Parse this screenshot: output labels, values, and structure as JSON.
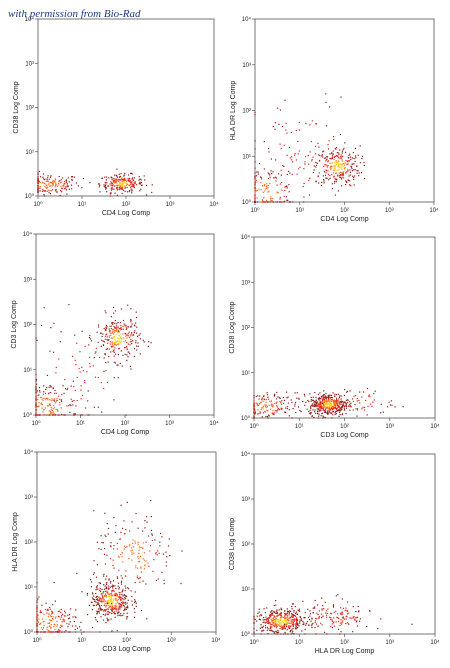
{
  "credit_text": "with permission from Bio-Rad",
  "chart_data": [
    {
      "type": "scatter",
      "xlabel": "CD4 Log Comp",
      "ylabel": "CD38 Log Comp",
      "scale": "log",
      "xlim": [
        1,
        10000
      ],
      "ylim": [
        1,
        10000
      ],
      "x_tick_labels": [
        "10⁰",
        "10¹",
        "10²",
        "10³",
        "10⁴"
      ],
      "y_tick_labels": [
        "10⁰",
        "10¹",
        "10²",
        "10³",
        "10⁴"
      ],
      "clusters": [
        {
          "center": [
            1.8,
            1.8
          ],
          "spread": [
            0.35,
            0.12
          ],
          "count": 170
        },
        {
          "center": [
            80,
            1.9
          ],
          "spread": [
            0.25,
            0.1
          ],
          "count": 240
        }
      ]
    },
    {
      "type": "scatter",
      "xlabel": "CD4 Log Comp",
      "ylabel": "HLA DR Log Comp",
      "scale": "log",
      "xlim": [
        1,
        10000
      ],
      "ylim": [
        1,
        10000
      ],
      "x_tick_labels": [
        "10⁰",
        "10¹",
        "10²",
        "10³",
        "10⁴"
      ],
      "y_tick_labels": [
        "10⁰",
        "10¹",
        "10²",
        "10³",
        "10⁴"
      ],
      "clusters": [
        {
          "center": [
            1.8,
            1.6
          ],
          "spread": [
            0.35,
            0.3
          ],
          "count": 160
        },
        {
          "center": [
            70,
            6
          ],
          "spread": [
            0.25,
            0.22
          ],
          "count": 260
        },
        {
          "center": [
            12,
            12
          ],
          "spread": [
            0.6,
            0.6
          ],
          "count": 90
        }
      ]
    },
    {
      "type": "scatter",
      "xlabel": "CD4 Log Comp",
      "ylabel": "CD3 Log Comp",
      "scale": "log",
      "xlim": [
        1,
        10000
      ],
      "ylim": [
        1,
        10000
      ],
      "x_tick_labels": [
        "10⁰",
        "10¹",
        "10²",
        "10³",
        "10⁴"
      ],
      "y_tick_labels": [
        "10⁰",
        "10¹",
        "10²",
        "10³",
        "10⁴"
      ],
      "clusters": [
        {
          "center": [
            1.8,
            1.7
          ],
          "spread": [
            0.35,
            0.25
          ],
          "count": 170
        },
        {
          "center": [
            70,
            50
          ],
          "spread": [
            0.25,
            0.25
          ],
          "count": 260
        },
        {
          "center": [
            10,
            10
          ],
          "spread": [
            0.55,
            0.55
          ],
          "count": 90
        }
      ]
    },
    {
      "type": "scatter",
      "xlabel": "CD3 Log Comp",
      "ylabel": "CD38 Log Comp",
      "scale": "log",
      "xlim": [
        1,
        10000
      ],
      "ylim": [
        1,
        10000
      ],
      "x_tick_labels": [
        "10⁰",
        "10¹",
        "10²",
        "10³",
        "10⁴"
      ],
      "y_tick_labels": [
        "10⁰",
        "10¹",
        "10²",
        "10³",
        "10⁴"
      ],
      "clusters": [
        {
          "center": [
            1.8,
            1.8
          ],
          "spread": [
            0.35,
            0.15
          ],
          "count": 170
        },
        {
          "center": [
            45,
            2.0
          ],
          "spread": [
            0.22,
            0.12
          ],
          "count": 420
        },
        {
          "center": [
            200,
            2.2
          ],
          "spread": [
            0.4,
            0.15
          ],
          "count": 60
        }
      ]
    },
    {
      "type": "scatter",
      "xlabel": "CD3 Log Comp",
      "ylabel": "HLA DR Log Comp",
      "scale": "log",
      "xlim": [
        1,
        10000
      ],
      "ylim": [
        1,
        10000
      ],
      "x_tick_labels": [
        "10⁰",
        "10¹",
        "10²",
        "10³",
        "10⁴"
      ],
      "y_tick_labels": [
        "10⁰",
        "10¹",
        "10²",
        "10³",
        "10⁴"
      ],
      "clusters": [
        {
          "center": [
            1.8,
            1.6
          ],
          "spread": [
            0.35,
            0.25
          ],
          "count": 200
        },
        {
          "center": [
            45,
            5
          ],
          "spread": [
            0.22,
            0.22
          ],
          "count": 380
        },
        {
          "center": [
            150,
            50
          ],
          "spread": [
            0.45,
            0.45
          ],
          "count": 180
        }
      ]
    },
    {
      "type": "scatter",
      "xlabel": "HLA DR Log Comp",
      "ylabel": "CD38 Log Comp",
      "scale": "log",
      "xlim": [
        1,
        10000
      ],
      "ylim": [
        1,
        10000
      ],
      "x_tick_labels": [
        "10⁰",
        "10¹",
        "10²",
        "10³",
        "10⁴"
      ],
      "y_tick_labels": [
        "10⁰",
        "10¹",
        "10²",
        "10³",
        "10⁴"
      ],
      "clusters": [
        {
          "center": [
            4,
            1.9
          ],
          "spread": [
            0.3,
            0.14
          ],
          "count": 420
        },
        {
          "center": [
            60,
            2.4
          ],
          "spread": [
            0.4,
            0.18
          ],
          "count": 150
        }
      ]
    }
  ],
  "colors": {
    "frame": "#555555",
    "dot_dark": "#8b1a12",
    "dot_red": "#e0261a",
    "dot_orange": "#ff6a1a",
    "dot_yellow": "#ffd21a"
  }
}
